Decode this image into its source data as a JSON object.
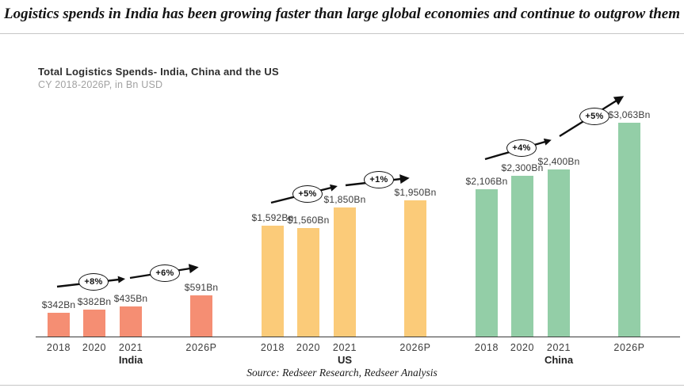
{
  "headline": "Logistics spends in India has been growing faster than large global economies and continue to outgrow them",
  "chart": {
    "title": "Total Logistics Spends- India, China and the US",
    "subtitle": "CY 2018-2026P, in Bn USD"
  },
  "source": "Source: Redseer Research, Redseer Analysis",
  "chart_data": {
    "type": "bar",
    "title": "Total Logistics Spends- India, China and the US",
    "subtitle": "CY 2018-2026P, in Bn USD",
    "unit": "Bn USD",
    "x_categories": [
      "2018",
      "2020",
      "2021",
      "2026P"
    ],
    "series": [
      {
        "name": "India",
        "color": "#F58E73",
        "values": [
          342,
          382,
          435,
          591
        ],
        "labels": [
          "$342Bn",
          "$382Bn",
          "$435Bn",
          "$591Bn"
        ],
        "growth_annotations": [
          "+8%",
          "+6%"
        ]
      },
      {
        "name": "US",
        "color": "#FBCB79",
        "values": [
          1592,
          1560,
          1850,
          1950
        ],
        "labels": [
          "$1,592Bn",
          "$1,560Bn",
          "$1,850Bn",
          "$1,950Bn"
        ],
        "growth_annotations": [
          "+5%",
          "+1%"
        ]
      },
      {
        "name": "China",
        "color": "#93CEA7",
        "values": [
          2106,
          2300,
          2400,
          3063
        ],
        "labels": [
          "$2,106Bn",
          "$2,300Bn",
          "$2,400Bn",
          "$3,063Bn"
        ],
        "growth_annotations": [
          "+4%",
          "+5%"
        ]
      }
    ],
    "ylim": [
      0,
      3200
    ],
    "grid": false,
    "legend": "none"
  }
}
